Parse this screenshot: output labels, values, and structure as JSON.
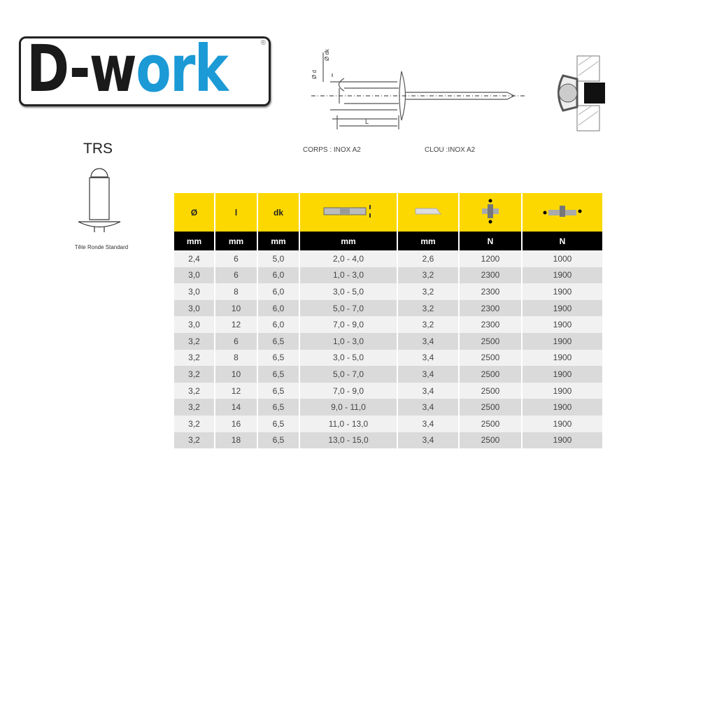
{
  "logo": {
    "part1": "D-w",
    "part2": "ork",
    "reg": "®"
  },
  "diagram": {
    "label_dk": "Ø dk",
    "label_d": "Ø d",
    "label_L": "L"
  },
  "materials": {
    "body": "CORPS : INOX A2",
    "mandrel": "CLOU :INOX A2"
  },
  "head_type": {
    "code": "TRS",
    "caption": "Tête Ronde Standard"
  },
  "colors": {
    "header": "#fcd800",
    "units": "#000000",
    "logo_blue": "#1b9ad6"
  },
  "table": {
    "headers": [
      "Ø",
      "l",
      "dk",
      "grip-range-icon",
      "drill-icon",
      "shear-force-icon",
      "tensile-force-icon"
    ],
    "units": [
      "mm",
      "mm",
      "mm",
      "mm",
      "mm",
      "N",
      "N"
    ],
    "rows": [
      [
        "2,4",
        "6",
        "5,0",
        "2,0 - 4,0",
        "2,6",
        "1200",
        "1000"
      ],
      [
        "3,0",
        "6",
        "6,0",
        "1,0 - 3,0",
        "3,2",
        "2300",
        "1900"
      ],
      [
        "3,0",
        "8",
        "6,0",
        "3,0 - 5,0",
        "3,2",
        "2300",
        "1900"
      ],
      [
        "3,0",
        "10",
        "6,0",
        "5,0 - 7,0",
        "3,2",
        "2300",
        "1900"
      ],
      [
        "3,0",
        "12",
        "6,0",
        "7,0 - 9,0",
        "3,2",
        "2300",
        "1900"
      ],
      [
        "3,2",
        "6",
        "6,5",
        "1,0 - 3,0",
        "3,4",
        "2500",
        "1900"
      ],
      [
        "3,2",
        "8",
        "6,5",
        "3,0 - 5,0",
        "3,4",
        "2500",
        "1900"
      ],
      [
        "3,2",
        "10",
        "6,5",
        "5,0 - 7,0",
        "3,4",
        "2500",
        "1900"
      ],
      [
        "3,2",
        "12",
        "6,5",
        "7,0 - 9,0",
        "3,4",
        "2500",
        "1900"
      ],
      [
        "3,2",
        "14",
        "6,5",
        "9,0 - 11,0",
        "3,4",
        "2500",
        "1900"
      ],
      [
        "3,2",
        "16",
        "6,5",
        "11,0 - 13,0",
        "3,4",
        "2500",
        "1900"
      ],
      [
        "3,2",
        "18",
        "6,5",
        "13,0 - 15,0",
        "3,4",
        "2500",
        "1900"
      ]
    ]
  }
}
